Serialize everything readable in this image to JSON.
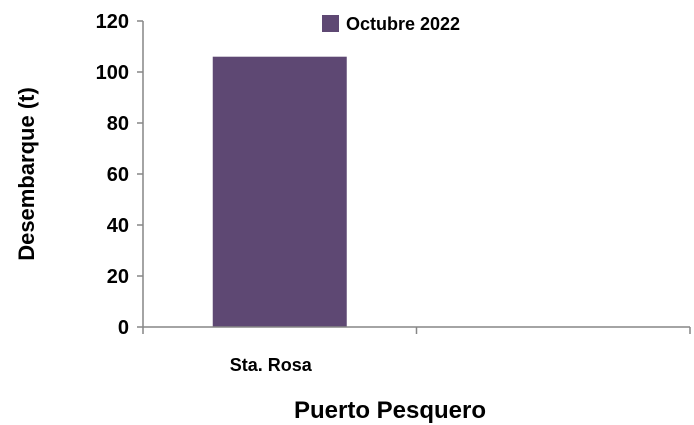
{
  "chart_data": {
    "type": "bar",
    "categories": [
      "Sta. Rosa",
      ""
    ],
    "series": [
      {
        "name": "Octubre 2022",
        "values": [
          106,
          null
        ],
        "color": "#5e4873"
      }
    ],
    "ylabel": "Desembarque (t)",
    "xlabel": "Puerto Pesquero",
    "ylim": [
      0,
      120
    ],
    "yticks": [
      0,
      20,
      40,
      60,
      80,
      100,
      120
    ],
    "grid": false,
    "legend_position": "top"
  }
}
